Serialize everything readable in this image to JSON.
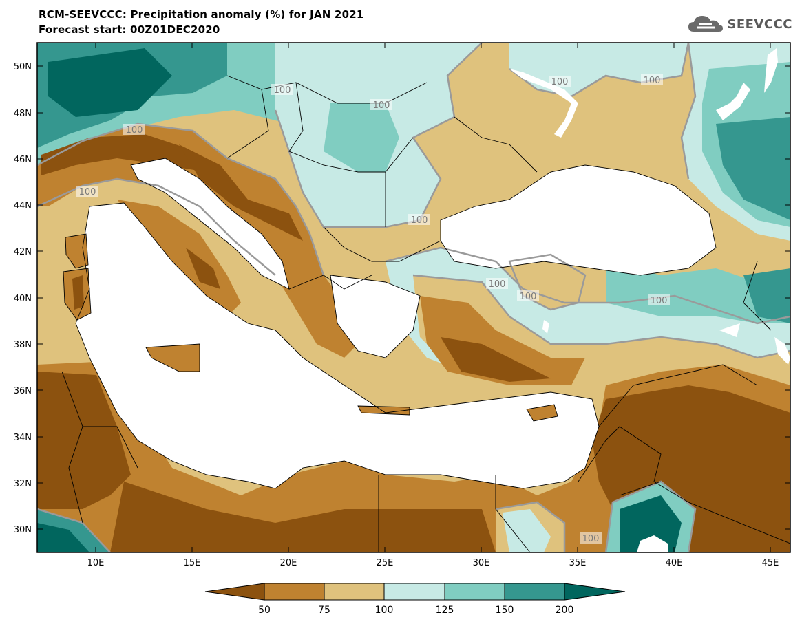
{
  "header": {
    "title": "RCM-SEEVCCC: Precipitation anomaly (%) for JAN 2021",
    "subtitle": "Forecast start: 00Z01DEC2020",
    "logo_text": "SEEVCCC"
  },
  "map": {
    "lat_labels": [
      "50N",
      "48N",
      "46N",
      "44N",
      "42N",
      "40N",
      "38N",
      "36N",
      "34N",
      "32N",
      "30N"
    ],
    "lon_labels": [
      "10E",
      "15E",
      "20E",
      "25E",
      "30E",
      "35E",
      "40E",
      "45E"
    ],
    "contour_label": "100",
    "colors": {
      "lt50": "#8c520f",
      "c50_75": "#bf8230",
      "c75_100": "#dfc27d",
      "c100_125": "#c7eae5",
      "c125_150": "#80cdc1",
      "c150_200": "#35978f",
      "gt200": "#01665e",
      "land_white": "#ffffff",
      "contour_grey": "#9a9a9a"
    }
  },
  "colorbar": {
    "tick_labels": [
      "50",
      "75",
      "100",
      "125",
      "150",
      "200"
    ],
    "colors": [
      "#8c520f",
      "#bf8230",
      "#dfc27d",
      "#c7eae5",
      "#80cdc1",
      "#35978f",
      "#01665e"
    ]
  }
}
